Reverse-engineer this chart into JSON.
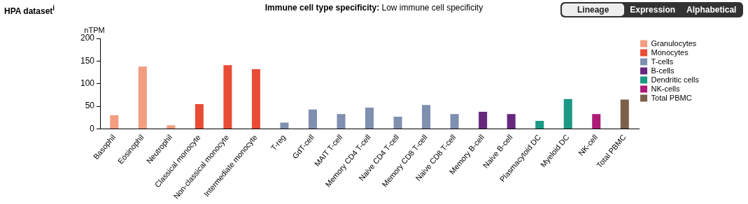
{
  "chart_data": {
    "type": "bar",
    "title": "Immune cell type specificity: Low immune cell specificity",
    "ylabel": "nTPM",
    "annotations": [
      "HPA dataset$^{i}$",
      "Lineage",
      "Expression",
      "Alphabetical"
    ],
    "categories": [
      "Basophil",
      "Eosinophil",
      "Neutrophil",
      "Classical monocyte",
      "Non-classical monocyte",
      "Intermediate monocyte",
      "T-reg",
      "GdT-cell",
      "MAIT T-cell",
      "Memory CD4 T-cell",
      "Naive CD4 T-cell",
      "Memory CD8 T-cell",
      "Naive CD8 T-cell",
      "Memory B-cell",
      "Naive B-cell",
      "Plasmacytoid DC",
      "Myeloid DC",
      "NK-cell",
      "Total PBMC"
    ],
    "series": [
      {
        "name": "Granulocytes",
        "color": "#f29d80",
        "values": [
          30,
          138,
          8,
          null,
          null,
          null,
          null,
          null,
          null,
          null,
          null,
          null,
          null,
          null,
          null,
          null,
          null,
          null,
          null
        ]
      },
      {
        "name": "Monocytes",
        "color": "#e84c35",
        "values": [
          null,
          null,
          null,
          55,
          141,
          132,
          null,
          null,
          null,
          null,
          null,
          null,
          null,
          null,
          null,
          null,
          null,
          null,
          null
        ]
      },
      {
        "name": "T-cells",
        "color": "#7f8fb0",
        "values": [
          null,
          null,
          null,
          null,
          null,
          null,
          14,
          43,
          33,
          47,
          27,
          53,
          33,
          null,
          null,
          null,
          null,
          null,
          null
        ]
      },
      {
        "name": "B-cells",
        "color": "#66287d",
        "values": [
          null,
          null,
          null,
          null,
          null,
          null,
          null,
          null,
          null,
          null,
          null,
          null,
          null,
          38,
          33,
          null,
          null,
          null,
          null
        ]
      },
      {
        "name": "Dendritic cells",
        "color": "#1a9985",
        "values": [
          null,
          null,
          null,
          null,
          null,
          null,
          null,
          null,
          null,
          null,
          null,
          null,
          null,
          null,
          null,
          18,
          66,
          null,
          null
        ]
      },
      {
        "name": "NK-cells",
        "color": "#ad1c76",
        "values": [
          null,
          null,
          null,
          null,
          null,
          null,
          null,
          null,
          null,
          null,
          null,
          null,
          null,
          null,
          null,
          null,
          null,
          33,
          null
        ]
      },
      {
        "name": "Total PBMC",
        "color": "#7d604a",
        "values": [
          null,
          null,
          null,
          null,
          null,
          null,
          null,
          null,
          null,
          null,
          null,
          null,
          null,
          null,
          null,
          null,
          null,
          null,
          65
        ]
      }
    ],
    "ylim": [
      0,
      200
    ],
    "yticks": [
      0,
      50,
      100,
      150,
      200
    ],
    "grid": false,
    "legend": "right"
  }
}
